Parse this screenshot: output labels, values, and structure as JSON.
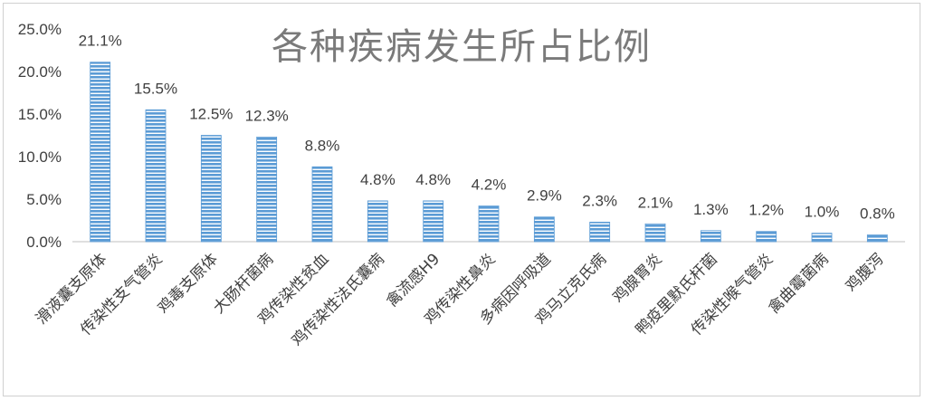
{
  "chart_data": {
    "type": "bar",
    "title": "各种疾病发生所占比例",
    "categories": [
      "滑液囊支原体",
      "传染性支气管炎",
      "鸡毒支原体",
      "大肠杆菌病",
      "鸡传染性贫血",
      "鸡传染性法氏囊病",
      "禽流感H9",
      "鸡传染性鼻炎",
      "多病因呼吸道",
      "鸡马立克氏病",
      "鸡腺胃炎",
      "鸭疫里默氏杆菌",
      "传染性喉气管炎",
      "禽曲霉菌病",
      "鸡腹泻"
    ],
    "series": [
      {
        "values": [
          21.1,
          15.5,
          12.5,
          12.3,
          8.8,
          4.8,
          4.8,
          4.2,
          2.9,
          2.3,
          2.1,
          1.3,
          1.2,
          1.0,
          0.8
        ],
        "labels": [
          "21.1%",
          "15.5%",
          "12.5%",
          "12.3%",
          "8.8%",
          "4.8%",
          "4.8%",
          "4.2%",
          "2.9%",
          "2.3%",
          "2.1%",
          "1.3%",
          "1.2%",
          "1.0%",
          "0.8%"
        ]
      }
    ],
    "ylim": [
      0,
      25
    ],
    "yticks": [
      "0.0%",
      "5.0%",
      "10.0%",
      "15.0%",
      "20.0%",
      "25.0%"
    ],
    "xlabel": "",
    "ylabel": "",
    "grid": false,
    "legend": "none",
    "colors": {
      "bar": "#5b9bd5",
      "stripe": "#ffffff",
      "axis": "#bfbfbf",
      "text": "#404040",
      "title": "#7a7a7a"
    }
  }
}
